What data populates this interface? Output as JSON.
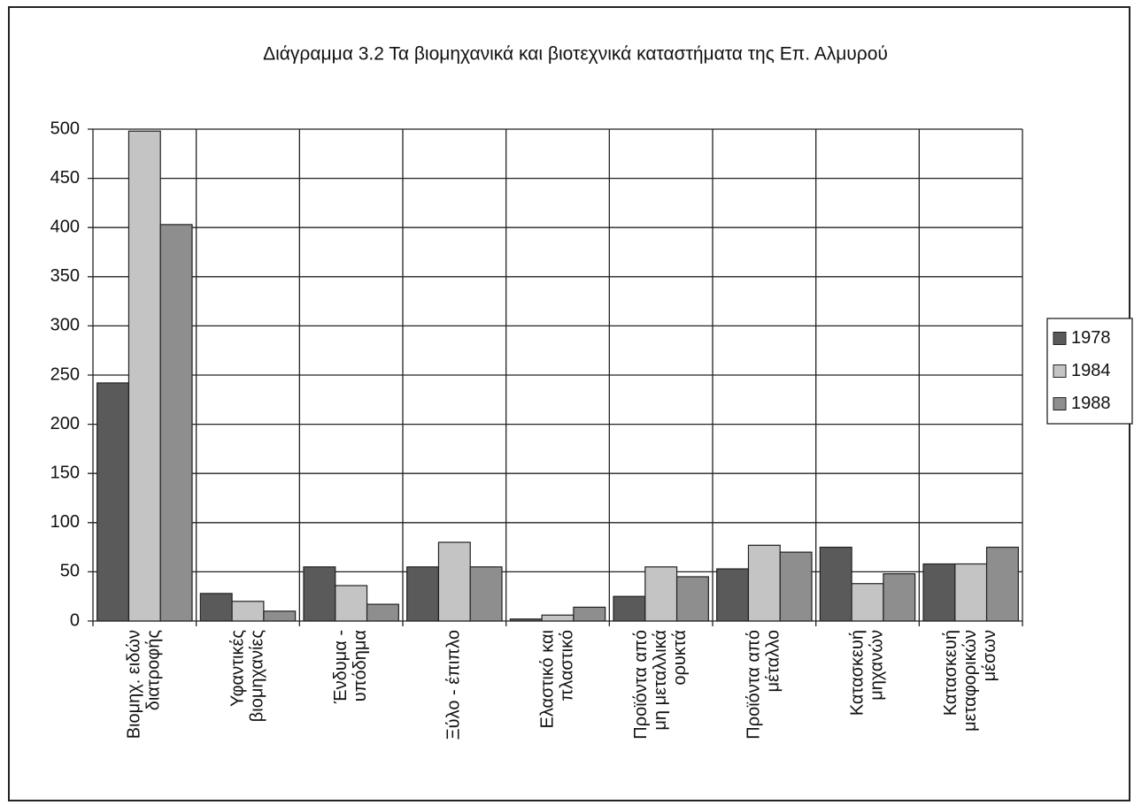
{
  "chart_data": {
    "type": "bar",
    "title": "Διάγραμμα 3.2   Τα βιομηχανικά και βιοτεχνικά καταστήματα της Επ. Αλμυρού",
    "categories": [
      [
        "Βιομηχ. ειδών",
        "διατροφής"
      ],
      [
        "Υφαντικές",
        "βιομηχανίες"
      ],
      [
        "Ένδυμα -",
        "υπόδημα"
      ],
      [
        "Ξύλο - έπιπλο"
      ],
      [
        "Ελαστικό και",
        "πλαστικό"
      ],
      [
        "Προϊόντα από",
        "μη μεταλλικά",
        "ορυκτά"
      ],
      [
        "Προϊόντα από",
        "μέταλλο"
      ],
      [
        "Κατασκευή",
        "μηχανών"
      ],
      [
        "Κατασκευή",
        "μεταφορικών",
        "μέσων"
      ]
    ],
    "series": [
      {
        "name": "1978",
        "color": "#5a5a5a",
        "values": [
          242,
          28,
          55,
          55,
          2,
          25,
          53,
          75,
          58
        ]
      },
      {
        "name": "1984",
        "color": "#c4c4c4",
        "values": [
          498,
          20,
          36,
          80,
          6,
          55,
          77,
          38,
          58
        ]
      },
      {
        "name": "1988",
        "color": "#8e8e8e",
        "values": [
          403,
          10,
          17,
          55,
          14,
          45,
          70,
          48,
          75
        ]
      }
    ],
    "ylim": [
      0,
      500
    ],
    "yticks": [
      0,
      50,
      100,
      150,
      200,
      250,
      300,
      350,
      400,
      450,
      500
    ],
    "grid": true,
    "legend": "right"
  }
}
